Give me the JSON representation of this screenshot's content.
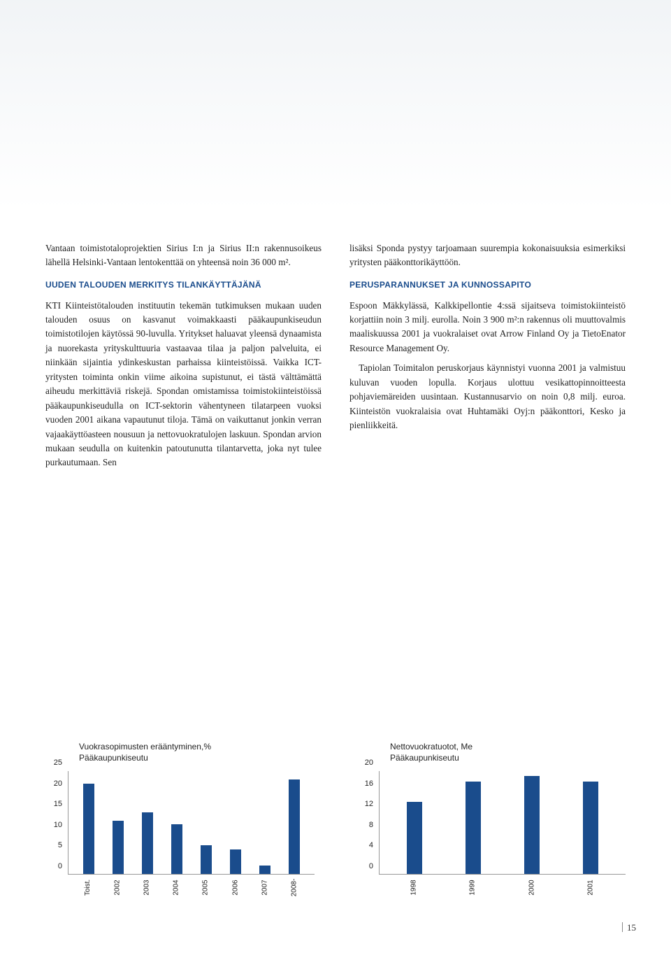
{
  "page_number": "15",
  "left_column": {
    "intro": "Vantaan toimistotaloprojektien Sirius I:n ja Sirius II:n rakennusoikeus lähellä Helsinki-Vantaan lentokenttää on yhteensä noin 36 000 m².",
    "heading": "UUDEN TALOUDEN MERKITYS TILANKÄYTTÄJÄNÄ",
    "body": "KTI Kiinteistötalouden instituutin tekemän tutkimuksen mukaan uuden talouden osuus on kasvanut voimakkaasti pääkaupunkiseudun toimistotilojen käytössä 90-luvulla. Yritykset haluavat yleensä dynaamista ja nuorekasta yrityskulttuuria vastaavaa tilaa ja paljon palveluita, ei niinkään sijaintia ydinkeskustan parhaissa kiinteistöissä. Vaikka ICT-yritysten toiminta onkin viime aikoina supistunut, ei tästä välttämättä aiheudu merkittäviä riskejä. Spondan omistamissa toimistokiinteistöissä pääkaupunkiseudulla on ICT-sektorin vähentyneen tilatarpeen vuoksi vuoden 2001 aikana vapautunut tiloja. Tämä on vaikuttanut jonkin verran vajaakäyttöasteen nousuun ja nettovuokratulojen laskuun. Spondan arvion mukaan seudulla on kuitenkin patoutunutta tilantarvetta, joka nyt tulee purkautumaan. Sen"
  },
  "right_column": {
    "intro": "lisäksi Sponda pystyy tarjoamaan suurempia kokonaisuuksia esimerkiksi yritysten pääkonttorikäyttöön.",
    "heading": "PERUSPARANNUKSET JA KUNNOSSAPITO",
    "body1": "Espoon Mäkkylässä, Kalkkipellontie 4:ssä sijaitseva toimistokiinteistö korjattiin noin 3 milj. eurolla. Noin 3 900 m²:n rakennus oli muuttovalmis maaliskuussa 2001 ja vuokralaiset ovat Arrow Finland Oy ja TietoEnator Resource Management Oy.",
    "body2": "Tapiolan Toimitalon peruskorjaus käynnistyi vuonna 2001 ja valmistuu kuluvan vuoden lopulla. Korjaus ulottuu vesikattopinnoitteesta pohjaviemäreiden uusintaan. Kustannusarvio on noin 0,8 milj. euroa. Kiinteistön vuokralaisia ovat Huhtamäki Oyj:n pääkonttori, Kesko ja pienliikkeitä."
  },
  "chart1": {
    "type": "bar",
    "title": "Vuokrasopimusten erääntyminen,%",
    "subtitle": "Pääkaupunkiseutu",
    "ylim": [
      0,
      25
    ],
    "yticks": [
      0,
      5,
      10,
      15,
      20,
      25
    ],
    "categories": [
      "Toist.",
      "2002",
      "2003",
      "2004",
      "2005",
      "2006",
      "2007",
      "2008-"
    ],
    "values": [
      22,
      13,
      15,
      12,
      7,
      6,
      2,
      23
    ],
    "bar_color": "#1a4c8c",
    "axis_color": "#999999",
    "label_fontsize": 10,
    "title_fontsize": 12,
    "rotate_labels": true
  },
  "chart2": {
    "type": "bar",
    "title": "Nettovuokratuotot, Me",
    "subtitle": "Pääkaupunkiseutu",
    "ylim": [
      0,
      20
    ],
    "yticks": [
      0,
      4,
      8,
      12,
      16,
      20
    ],
    "categories": [
      "1998",
      "1999",
      "2000",
      "2001"
    ],
    "values": [
      14,
      18,
      19,
      18
    ],
    "bar_color": "#1a4c8c",
    "axis_color": "#999999",
    "label_fontsize": 10,
    "title_fontsize": 12,
    "rotate_labels": true
  },
  "colors": {
    "heading": "#1a4c8c",
    "body_text": "#222222",
    "background": "#ffffff"
  }
}
